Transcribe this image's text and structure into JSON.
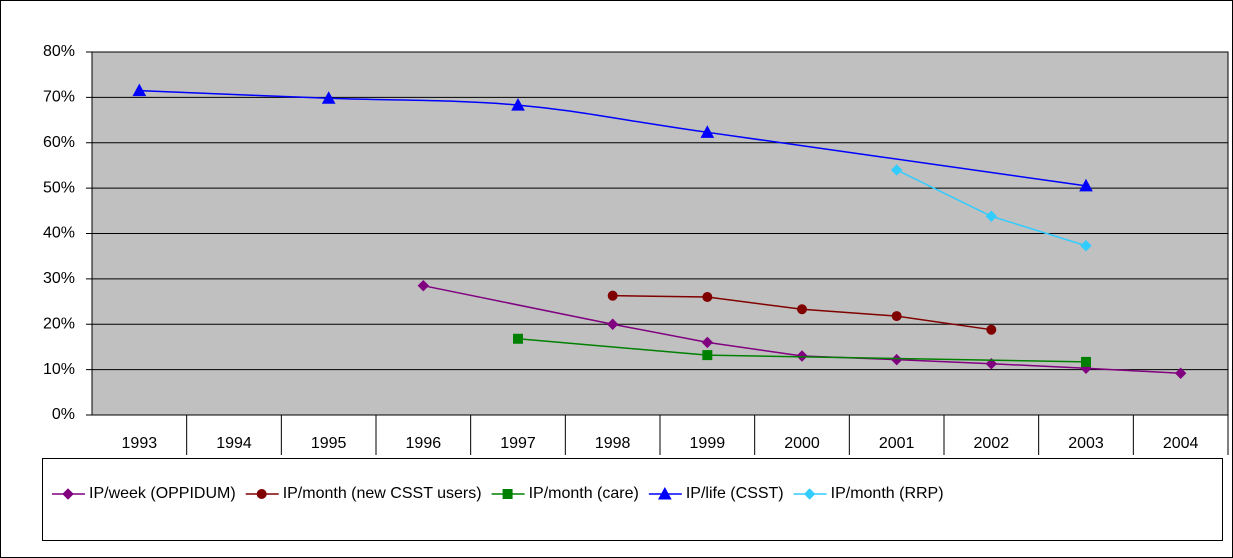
{
  "chart_data": {
    "type": "line",
    "categories": [
      "1993",
      "1994",
      "1995",
      "1996",
      "1997",
      "1998",
      "1999",
      "2000",
      "2001",
      "2002",
      "2003",
      "2004"
    ],
    "series": [
      {
        "name": "IP/week (OPPIDUM)",
        "color": "#800080",
        "marker": "diamond",
        "smooth": false,
        "values": [
          null,
          null,
          null,
          28.5,
          null,
          20,
          16,
          13,
          12.2,
          11.3,
          10.3,
          9.2
        ]
      },
      {
        "name": "IP/month (new CSST users)",
        "color": "#800000",
        "marker": "circle",
        "smooth": false,
        "values": [
          null,
          null,
          null,
          null,
          null,
          26.3,
          26,
          23.3,
          21.8,
          18.8,
          null,
          null
        ]
      },
      {
        "name": "IP/month (care)",
        "color": "#008000",
        "marker": "square",
        "smooth": false,
        "values": [
          null,
          null,
          null,
          null,
          16.8,
          null,
          13.2,
          null,
          null,
          null,
          11.7,
          null
        ]
      },
      {
        "name": "IP/life (CSST)",
        "color": "#0000FF",
        "marker": "triangle",
        "smooth": true,
        "values": [
          71.5,
          null,
          69.8,
          null,
          68.3,
          null,
          62.3,
          null,
          null,
          null,
          50.5,
          null
        ]
      },
      {
        "name": "IP/month (RRP)",
        "color": "#33CCFF",
        "marker": "diamond",
        "smooth": false,
        "values": [
          null,
          null,
          null,
          null,
          null,
          null,
          null,
          null,
          54,
          43.8,
          37.3,
          null
        ]
      }
    ],
    "ylim": [
      0,
      80
    ],
    "yticks": [
      {
        "value": 0,
        "label": "0%"
      },
      {
        "value": 10,
        "label": "10%"
      },
      {
        "value": 20,
        "label": "20%"
      },
      {
        "value": 30,
        "label": "30%"
      },
      {
        "value": 40,
        "label": "40%"
      },
      {
        "value": 50,
        "label": "50%"
      },
      {
        "value": 60,
        "label": "60%"
      },
      {
        "value": 70,
        "label": "70%"
      },
      {
        "value": 80,
        "label": "80%"
      }
    ],
    "grid": true,
    "span_gaps": true,
    "plot_background": "#C0C0C0",
    "legend": "bottom"
  }
}
